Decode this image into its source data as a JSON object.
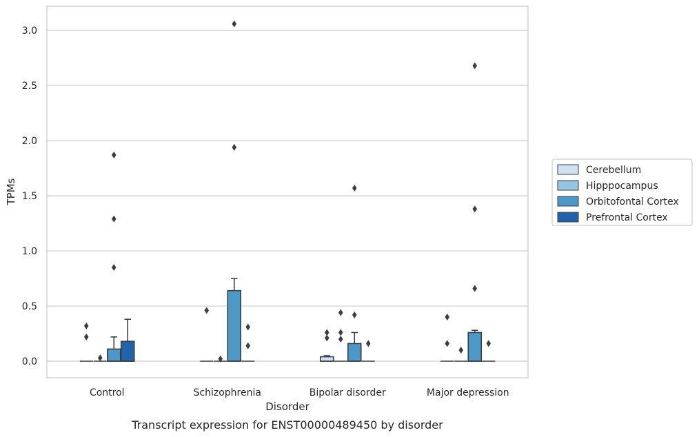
{
  "chart_data": {
    "type": "box",
    "xlabel": "Disorder",
    "ylabel": "TPMs",
    "caption": "Transcript expression for ENST00000489450 by disorder",
    "categories": [
      "Control",
      "Schizophrenia",
      "Bipolar disorder",
      "Major depression"
    ],
    "ylim": [
      -0.15,
      3.22
    ],
    "yticks": [
      0.0,
      0.5,
      1.0,
      1.5,
      2.0,
      2.5,
      3.0
    ],
    "ytick_labels": [
      "0.0",
      "0.5",
      "1.0",
      "1.5",
      "2.0",
      "2.5",
      "3.0"
    ],
    "grid": true,
    "legend_position": "right-center",
    "series": [
      {
        "name": "Cerebellum",
        "color": "#d0e1f2",
        "boxes": [
          {
            "q1": 0,
            "median": 0,
            "q3": 0,
            "whisker_low": 0,
            "whisker_high": 0,
            "outliers": [
              0.32,
              0.22
            ]
          },
          {
            "q1": 0,
            "median": 0,
            "q3": 0,
            "whisker_low": 0,
            "whisker_high": 0,
            "outliers": [
              0.46
            ]
          },
          {
            "q1": 0,
            "median": 0,
            "q3": 0.04,
            "whisker_low": 0,
            "whisker_high": 0.05,
            "outliers": [
              0.26,
              0.21
            ]
          },
          {
            "q1": 0,
            "median": 0,
            "q3": 0,
            "whisker_low": 0,
            "whisker_high": 0,
            "outliers": [
              0.4,
              0.16
            ]
          }
        ]
      },
      {
        "name": "Hipppocampus",
        "color": "#94c4df",
        "boxes": [
          {
            "q1": 0,
            "median": 0,
            "q3": 0,
            "whisker_low": 0,
            "whisker_high": 0,
            "outliers": [
              0.03
            ]
          },
          {
            "q1": 0,
            "median": 0,
            "q3": 0,
            "whisker_low": 0,
            "whisker_high": 0,
            "outliers": [
              0.02
            ]
          },
          {
            "q1": 0,
            "median": 0,
            "q3": 0,
            "whisker_low": 0,
            "whisker_high": 0,
            "outliers": [
              0.44,
              0.26,
              0.2
            ]
          },
          {
            "q1": 0,
            "median": 0,
            "q3": 0,
            "whisker_low": 0,
            "whisker_high": 0,
            "outliers": [
              0.1
            ]
          }
        ]
      },
      {
        "name": "Orbitofontal Cortex",
        "color": "#4b98c9",
        "boxes": [
          {
            "q1": 0,
            "median": 0,
            "q3": 0.11,
            "whisker_low": 0,
            "whisker_high": 0.22,
            "outliers": [
              1.87,
              1.29,
              0.85
            ]
          },
          {
            "q1": 0,
            "median": 0,
            "q3": 0.64,
            "whisker_low": 0,
            "whisker_high": 0.75,
            "outliers": [
              3.06,
              1.94
            ]
          },
          {
            "q1": 0,
            "median": 0,
            "q3": 0.16,
            "whisker_low": 0,
            "whisker_high": 0.26,
            "outliers": [
              1.57,
              0.42
            ]
          },
          {
            "q1": 0,
            "median": 0,
            "q3": 0.26,
            "whisker_low": 0,
            "whisker_high": 0.28,
            "outliers": [
              2.68,
              1.38,
              0.66
            ]
          }
        ]
      },
      {
        "name": "Prefrontal Cortex",
        "color": "#2163aa",
        "boxes": [
          {
            "q1": 0,
            "median": 0,
            "q3": 0.18,
            "whisker_low": 0,
            "whisker_high": 0.38,
            "outliers": []
          },
          {
            "q1": 0,
            "median": 0,
            "q3": 0,
            "whisker_low": 0,
            "whisker_high": 0,
            "outliers": [
              0.31,
              0.14
            ]
          },
          {
            "q1": 0,
            "median": 0,
            "q3": 0,
            "whisker_low": 0,
            "whisker_high": 0,
            "outliers": [
              0.16
            ]
          },
          {
            "q1": 0,
            "median": 0,
            "q3": 0,
            "whisker_low": 0,
            "whisker_high": 0,
            "outliers": [
              0.16
            ]
          }
        ]
      }
    ]
  }
}
